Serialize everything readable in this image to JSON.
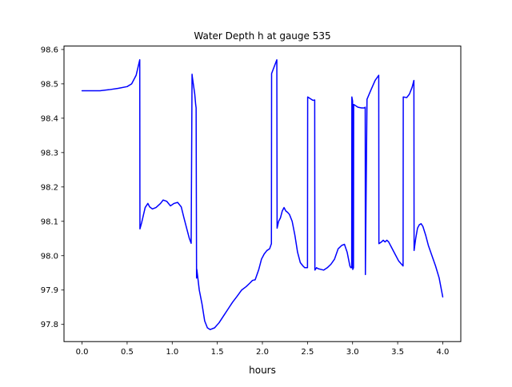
{
  "chart_data": {
    "type": "line",
    "title": "Water Depth h at gauge 535",
    "xlabel": "hours",
    "ylabel": "",
    "xlim": [
      -0.2,
      4.2
    ],
    "ylim": [
      97.75,
      98.61
    ],
    "xticks": [
      0.0,
      0.5,
      1.0,
      1.5,
      2.0,
      2.5,
      3.0,
      3.5,
      4.0
    ],
    "yticks": [
      97.8,
      97.9,
      98.0,
      98.1,
      98.2,
      98.3,
      98.4,
      98.5,
      98.6
    ],
    "xtick_labels": [
      "0.0",
      "0.5",
      "1.0",
      "1.5",
      "2.0",
      "2.5",
      "3.0",
      "3.5",
      "4.0"
    ],
    "ytick_labels": [
      "97.8",
      "97.9",
      "98.0",
      "98.1",
      "98.2",
      "98.3",
      "98.4",
      "98.5",
      "98.6"
    ],
    "grid": false,
    "legend": "none",
    "series": [
      {
        "color": "#0000ff",
        "x": [
          0.0,
          0.1,
          0.2,
          0.3,
          0.4,
          0.5,
          0.55,
          0.6,
          0.64,
          0.642,
          0.66,
          0.7,
          0.73,
          0.75,
          0.78,
          0.82,
          0.87,
          0.9,
          0.94,
          0.98,
          1.02,
          1.06,
          1.1,
          1.13,
          1.16,
          1.19,
          1.21,
          1.22,
          1.223,
          1.25,
          1.26,
          1.265,
          1.27,
          1.273,
          1.3,
          1.33,
          1.36,
          1.39,
          1.42,
          1.47,
          1.52,
          1.57,
          1.62,
          1.67,
          1.72,
          1.77,
          1.82,
          1.86,
          1.89,
          1.92,
          1.96,
          1.99,
          2.02,
          2.05,
          2.08,
          2.1,
          2.102,
          2.16,
          2.163,
          2.18,
          2.2,
          2.22,
          2.24,
          2.26,
          2.28,
          2.3,
          2.33,
          2.36,
          2.39,
          2.42,
          2.45,
          2.47,
          2.5,
          2.502,
          2.56,
          2.58,
          2.582,
          2.6,
          2.62,
          2.65,
          2.68,
          2.72,
          2.76,
          2.8,
          2.84,
          2.88,
          2.91,
          2.94,
          2.97,
          2.98,
          2.99,
          2.992,
          3.0,
          3.002,
          3.01,
          3.012,
          3.06,
          3.1,
          3.13,
          3.14,
          3.142,
          3.16,
          3.2,
          3.25,
          3.29,
          3.292,
          3.32,
          3.34,
          3.36,
          3.38,
          3.4,
          3.43,
          3.47,
          3.51,
          3.56,
          3.562,
          3.6,
          3.63,
          3.66,
          3.68,
          3.682,
          3.7,
          3.72,
          3.74,
          3.76,
          3.78,
          3.81,
          3.84,
          3.88,
          3.92,
          3.96,
          4.0
        ],
        "y": [
          98.48,
          98.48,
          98.48,
          98.483,
          98.487,
          98.492,
          98.5,
          98.525,
          98.57,
          98.078,
          98.095,
          98.14,
          98.152,
          98.142,
          98.136,
          98.14,
          98.152,
          98.162,
          98.158,
          98.145,
          98.152,
          98.155,
          98.142,
          98.11,
          98.08,
          98.05,
          98.036,
          98.528,
          98.52,
          98.47,
          98.44,
          98.43,
          97.935,
          97.96,
          97.9,
          97.86,
          97.81,
          97.79,
          97.785,
          97.79,
          97.805,
          97.825,
          97.845,
          97.865,
          97.882,
          97.9,
          97.91,
          97.92,
          97.928,
          97.93,
          97.96,
          97.99,
          98.005,
          98.015,
          98.02,
          98.035,
          98.53,
          98.57,
          98.08,
          98.1,
          98.11,
          98.13,
          98.14,
          98.13,
          98.126,
          98.12,
          98.1,
          98.06,
          98.01,
          97.98,
          97.97,
          97.965,
          97.965,
          98.462,
          98.452,
          98.453,
          97.958,
          97.965,
          97.962,
          97.96,
          97.958,
          97.965,
          97.975,
          97.99,
          98.02,
          98.03,
          98.033,
          98.01,
          97.97,
          97.965,
          97.965,
          98.462,
          98.45,
          97.96,
          97.965,
          98.44,
          98.432,
          98.43,
          98.43,
          98.432,
          97.945,
          98.455,
          98.48,
          98.51,
          98.525,
          98.035,
          98.04,
          98.045,
          98.04,
          98.045,
          98.04,
          98.025,
          98.005,
          97.985,
          97.97,
          98.462,
          98.46,
          98.47,
          98.49,
          98.51,
          98.015,
          98.05,
          98.08,
          98.09,
          98.093,
          98.085,
          98.06,
          98.03,
          98.0,
          97.97,
          97.935,
          97.88
        ]
      }
    ]
  }
}
